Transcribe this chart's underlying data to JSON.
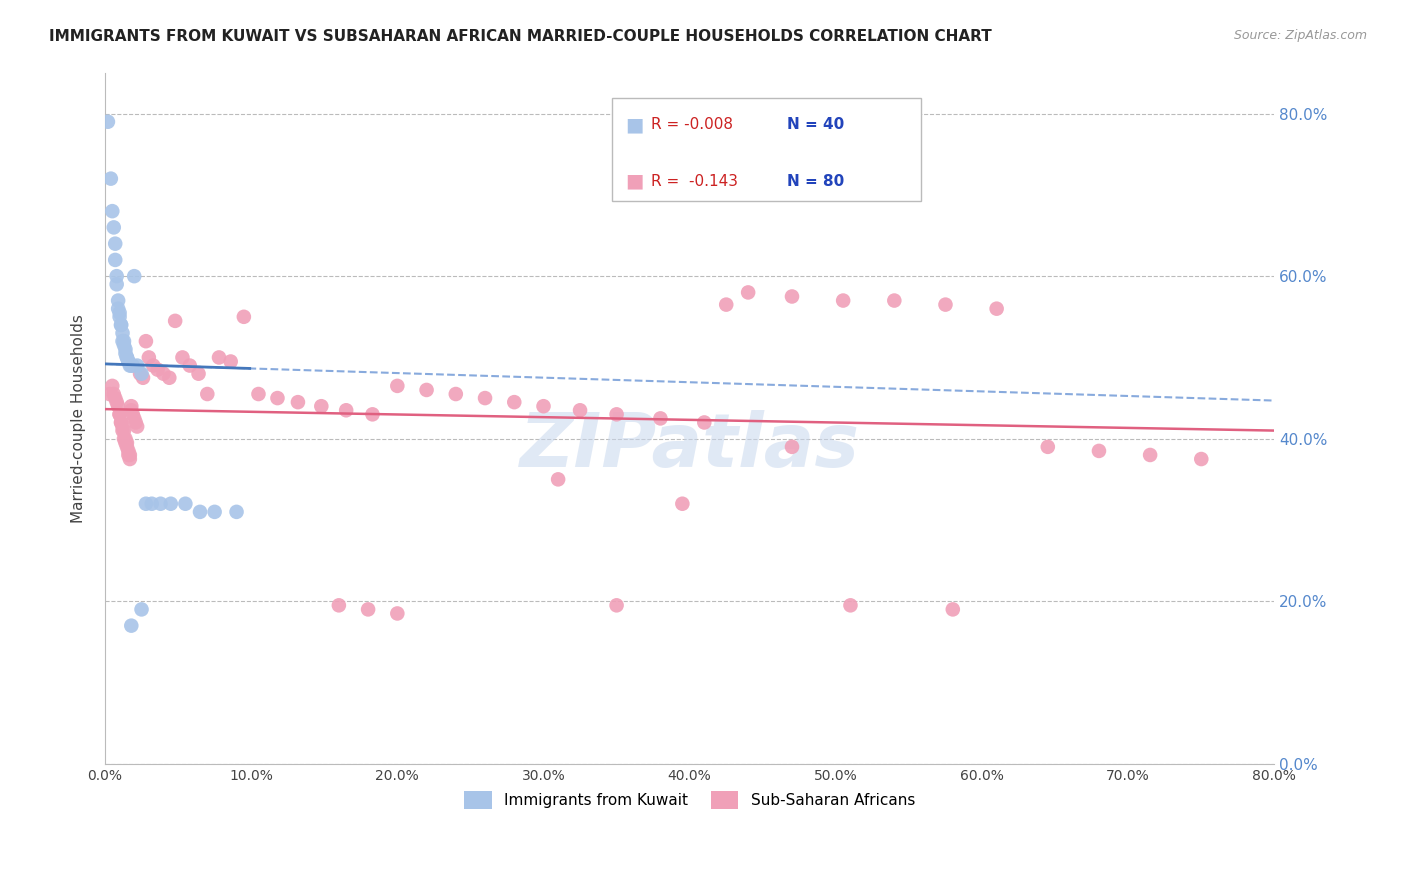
{
  "title": "IMMIGRANTS FROM KUWAIT VS SUBSAHARAN AFRICAN MARRIED-COUPLE HOUSEHOLDS CORRELATION CHART",
  "source": "Source: ZipAtlas.com",
  "ylabel": "Married-couple Households",
  "xmin": 0.0,
  "xmax": 0.8,
  "ymin": 0.0,
  "ymax": 0.85,
  "yticks": [
    0.0,
    0.2,
    0.4,
    0.6,
    0.8
  ],
  "xticks": [
    0.0,
    0.1,
    0.2,
    0.3,
    0.4,
    0.5,
    0.6,
    0.7,
    0.8
  ],
  "legend_r1": "R = -0.008",
  "legend_n1": "N = 40",
  "legend_r2": "R =  -0.143",
  "legend_n2": "N = 80",
  "series1_color": "#a8c4e8",
  "series2_color": "#f0a0b8",
  "trendline1_color": "#4477bb",
  "trendline2_color": "#e06080",
  "trendline1_dash_color": "#88aadd",
  "background_color": "#ffffff",
  "grid_color": "#bbbbbb",
  "right_axis_color": "#5588cc",
  "watermark_color": "#c8d8ee",
  "series1_x": [
    0.002,
    0.004,
    0.005,
    0.006,
    0.007,
    0.007,
    0.008,
    0.008,
    0.009,
    0.009,
    0.01,
    0.01,
    0.011,
    0.011,
    0.012,
    0.012,
    0.013,
    0.013,
    0.014,
    0.014,
    0.015,
    0.015,
    0.016,
    0.016,
    0.017,
    0.018,
    0.019,
    0.02,
    0.022,
    0.025,
    0.028,
    0.032,
    0.038,
    0.045,
    0.055,
    0.065,
    0.075,
    0.09,
    0.025,
    0.018
  ],
  "series1_y": [
    0.79,
    0.72,
    0.68,
    0.66,
    0.64,
    0.62,
    0.6,
    0.59,
    0.57,
    0.56,
    0.555,
    0.55,
    0.54,
    0.54,
    0.53,
    0.52,
    0.52,
    0.515,
    0.51,
    0.505,
    0.5,
    0.5,
    0.495,
    0.495,
    0.49,
    0.49,
    0.49,
    0.6,
    0.49,
    0.48,
    0.32,
    0.32,
    0.32,
    0.32,
    0.32,
    0.31,
    0.31,
    0.31,
    0.19,
    0.17
  ],
  "series2_x": [
    0.003,
    0.005,
    0.006,
    0.007,
    0.008,
    0.009,
    0.01,
    0.01,
    0.011,
    0.011,
    0.012,
    0.012,
    0.013,
    0.013,
    0.014,
    0.014,
    0.015,
    0.015,
    0.016,
    0.016,
    0.017,
    0.017,
    0.018,
    0.018,
    0.019,
    0.02,
    0.021,
    0.022,
    0.024,
    0.026,
    0.028,
    0.03,
    0.033,
    0.036,
    0.04,
    0.044,
    0.048,
    0.053,
    0.058,
    0.064,
    0.07,
    0.078,
    0.086,
    0.095,
    0.105,
    0.118,
    0.132,
    0.148,
    0.165,
    0.183,
    0.2,
    0.22,
    0.24,
    0.26,
    0.28,
    0.3,
    0.325,
    0.35,
    0.38,
    0.41,
    0.44,
    0.47,
    0.505,
    0.54,
    0.575,
    0.61,
    0.645,
    0.68,
    0.715,
    0.75,
    0.47,
    0.51,
    0.425,
    0.395,
    0.31,
    0.35,
    0.16,
    0.18,
    0.2,
    0.58
  ],
  "series2_y": [
    0.455,
    0.465,
    0.455,
    0.45,
    0.445,
    0.44,
    0.43,
    0.43,
    0.42,
    0.42,
    0.415,
    0.41,
    0.41,
    0.4,
    0.4,
    0.395,
    0.395,
    0.39,
    0.385,
    0.38,
    0.38,
    0.375,
    0.44,
    0.435,
    0.43,
    0.425,
    0.42,
    0.415,
    0.48,
    0.475,
    0.52,
    0.5,
    0.49,
    0.485,
    0.48,
    0.475,
    0.545,
    0.5,
    0.49,
    0.48,
    0.455,
    0.5,
    0.495,
    0.55,
    0.455,
    0.45,
    0.445,
    0.44,
    0.435,
    0.43,
    0.465,
    0.46,
    0.455,
    0.45,
    0.445,
    0.44,
    0.435,
    0.43,
    0.425,
    0.42,
    0.58,
    0.575,
    0.57,
    0.57,
    0.565,
    0.56,
    0.39,
    0.385,
    0.38,
    0.375,
    0.39,
    0.195,
    0.565,
    0.32,
    0.35,
    0.195,
    0.195,
    0.19,
    0.185,
    0.19
  ]
}
